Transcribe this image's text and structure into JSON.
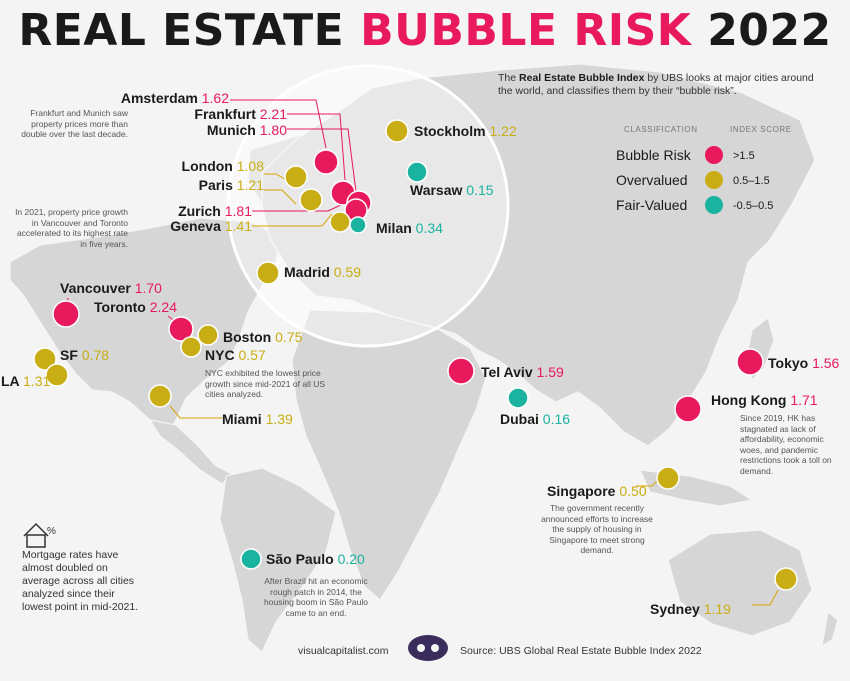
{
  "title_part1": "REAL ESTATE",
  "title_part2": "BUBBLE RISK",
  "title_part3": "2022",
  "intro_bold": "Real Estate Bubble Index",
  "intro_pre": "The",
  "intro_post": "by UBS looks at major cities around the world, and classifies them by their “bubble risk”.",
  "legend": {
    "classification_header": "CLASSIFICATION",
    "score_header": "INDEX SCORE",
    "items": [
      {
        "label": "Bubble Risk",
        "range": ">1.5",
        "color": "#e8195c"
      },
      {
        "label": "Overvalued",
        "range": "0.5–1.5",
        "color": "#c8ae14"
      },
      {
        "label": "Fair-Valued",
        "range": "-0.5–0.5",
        "color": "#1ab3a0"
      }
    ]
  },
  "notes": {
    "frankfurt_munich": "Frankfurt and Munich saw property prices more than double over the last decade.",
    "vancouver_toronto": "In 2021, property price growth in Vancouver and Toronto accelerated to its highest rate in five years.",
    "nyc": "NYC exhibited the lowest price growth since mid-2021 of all US cities analyzed.",
    "hong_kong": "Since 2019, HK has stagnated as lack of affordability, economic woes, and pandemic restrictions took a toll on demand.",
    "singapore": "The government recently announced efforts to increase the supply of housing in Singapore to meet strong demand.",
    "sao_paulo": "After Brazil hit an economic rough patch in 2014, the housing boom in São Paulo came to an end.",
    "mortgage": "Mortgage rates have almost doubled on average across all cities analyzed since their lowest point in mid-2021."
  },
  "footer": {
    "site": "visualcapitalist.com",
    "source": "Source: UBS Global Real Estate Bubble Index 2022"
  },
  "chart_data": {
    "type": "scatter",
    "title": "REAL ESTATE BUBBLE RISK 2022",
    "series": [
      {
        "name": "Bubble Risk",
        "color": "#e8195c",
        "cities": [
          "Frankfurt",
          "Toronto",
          "Zurich",
          "Munich",
          "Hong Kong",
          "Vancouver",
          "Amsterdam",
          "Tel Aviv",
          "Tokyo"
        ]
      },
      {
        "name": "Overvalued",
        "color": "#c8ae14",
        "cities": [
          "Geneva",
          "Miami",
          "LA",
          "Stockholm",
          "Paris",
          "Sydney",
          "London",
          "SF",
          "Madrid",
          "NYC",
          "Boston",
          "Singapore"
        ]
      },
      {
        "name": "Fair-Valued",
        "color": "#1ab3a0",
        "cities": [
          "Milan",
          "São Paulo",
          "Dubai",
          "Warsaw"
        ]
      }
    ],
    "points": [
      {
        "city": "Amsterdam",
        "score": "1.62",
        "class": "Bubble Risk"
      },
      {
        "city": "Frankfurt",
        "score": "2.21",
        "class": "Bubble Risk"
      },
      {
        "city": "Munich",
        "score": "1.80",
        "class": "Bubble Risk"
      },
      {
        "city": "Stockholm",
        "score": "1.22",
        "class": "Overvalued"
      },
      {
        "city": "London",
        "score": "1.08",
        "class": "Overvalued"
      },
      {
        "city": "Paris",
        "score": "1.21",
        "class": "Overvalued"
      },
      {
        "city": "Warsaw",
        "score": "0.15",
        "class": "Fair-Valued"
      },
      {
        "city": "Zurich",
        "score": "1.81",
        "class": "Bubble Risk"
      },
      {
        "city": "Geneva",
        "score": "1.41",
        "class": "Overvalued"
      },
      {
        "city": "Milan",
        "score": "0.34",
        "class": "Fair-Valued"
      },
      {
        "city": "Madrid",
        "score": "0.59",
        "class": "Overvalued"
      },
      {
        "city": "Vancouver",
        "score": "1.70",
        "class": "Bubble Risk"
      },
      {
        "city": "Toronto",
        "score": "2.24",
        "class": "Bubble Risk"
      },
      {
        "city": "Boston",
        "score": "0.75",
        "class": "Overvalued"
      },
      {
        "city": "NYC",
        "score": "0.57",
        "class": "Overvalued"
      },
      {
        "city": "SF",
        "score": "0.78",
        "class": "Overvalued"
      },
      {
        "city": "LA",
        "score": "1.31",
        "class": "Overvalued"
      },
      {
        "city": "Miami",
        "score": "1.39",
        "class": "Overvalued"
      },
      {
        "city": "Tel Aviv",
        "score": "1.59",
        "class": "Bubble Risk"
      },
      {
        "city": "Dubai",
        "score": "0.16",
        "class": "Fair-Valued"
      },
      {
        "city": "Tokyo",
        "score": "1.56",
        "class": "Bubble Risk"
      },
      {
        "city": "Hong Kong",
        "score": "1.71",
        "class": "Bubble Risk"
      },
      {
        "city": "Singapore",
        "score": "0.50",
        "class": "Overvalued"
      },
      {
        "city": "São Paulo",
        "score": "0.20",
        "class": "Fair-Valued"
      },
      {
        "city": "Sydney",
        "score": "1.19",
        "class": "Overvalued"
      }
    ]
  }
}
